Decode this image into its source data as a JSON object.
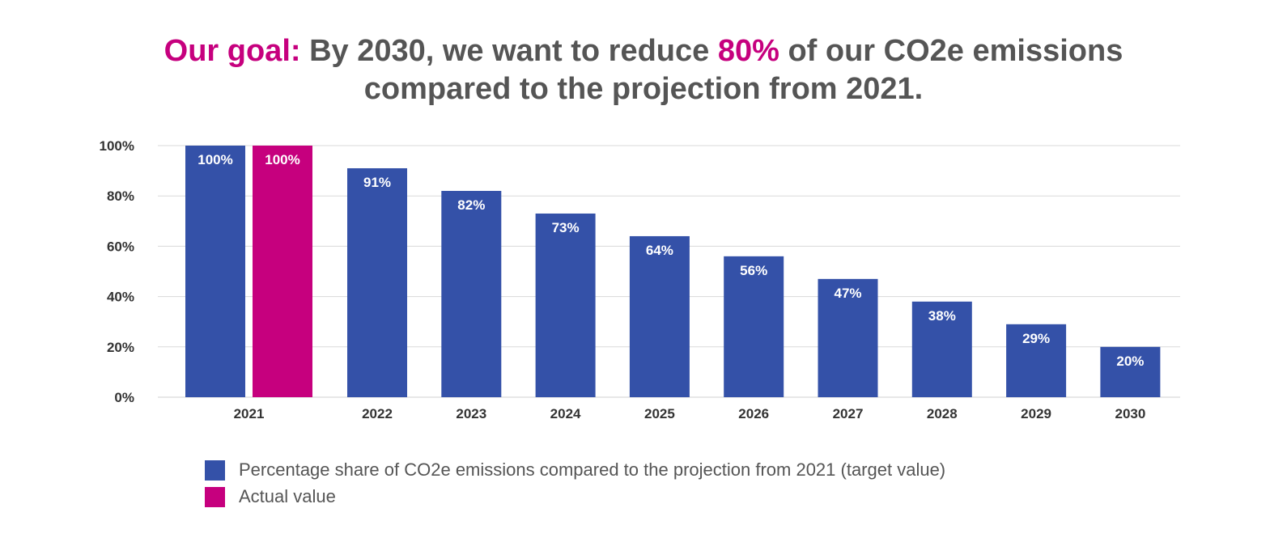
{
  "title": {
    "highlight": "Our goal:",
    "part1": " By 2030, we want to reduce ",
    "highlight_value": "80%",
    "part2": " of our CO2e emissions",
    "line2": "compared to the projection from 2021."
  },
  "colors": {
    "target": "#3451a8",
    "actual": "#c6007e",
    "title_text": "#555555",
    "grid": "#d9d9d9"
  },
  "chart_data": {
    "type": "bar",
    "categories": [
      "2021",
      "2022",
      "2023",
      "2024",
      "2025",
      "2026",
      "2027",
      "2028",
      "2029",
      "2030"
    ],
    "series": [
      {
        "name": "Percentage share of CO2e emissions compared to the projection from 2021 (target value)",
        "values": [
          100,
          91,
          82,
          73,
          64,
          56,
          47,
          38,
          29,
          20
        ],
        "labels": [
          "100%",
          "91%",
          "82%",
          "73%",
          "64%",
          "56%",
          "47%",
          "38%",
          "29%",
          "20%"
        ]
      },
      {
        "name": "Actual value",
        "values": [
          100,
          null,
          null,
          null,
          null,
          null,
          null,
          null,
          null,
          null
        ],
        "labels": [
          "100%",
          null,
          null,
          null,
          null,
          null,
          null,
          null,
          null,
          null
        ]
      }
    ],
    "yticks": [
      0,
      20,
      40,
      60,
      80,
      100
    ],
    "ytick_labels": [
      "0%",
      "20%",
      "40%",
      "60%",
      "80%",
      "100%"
    ],
    "ylim": [
      0,
      100
    ],
    "grid": true,
    "legend_position": "bottom-left"
  }
}
